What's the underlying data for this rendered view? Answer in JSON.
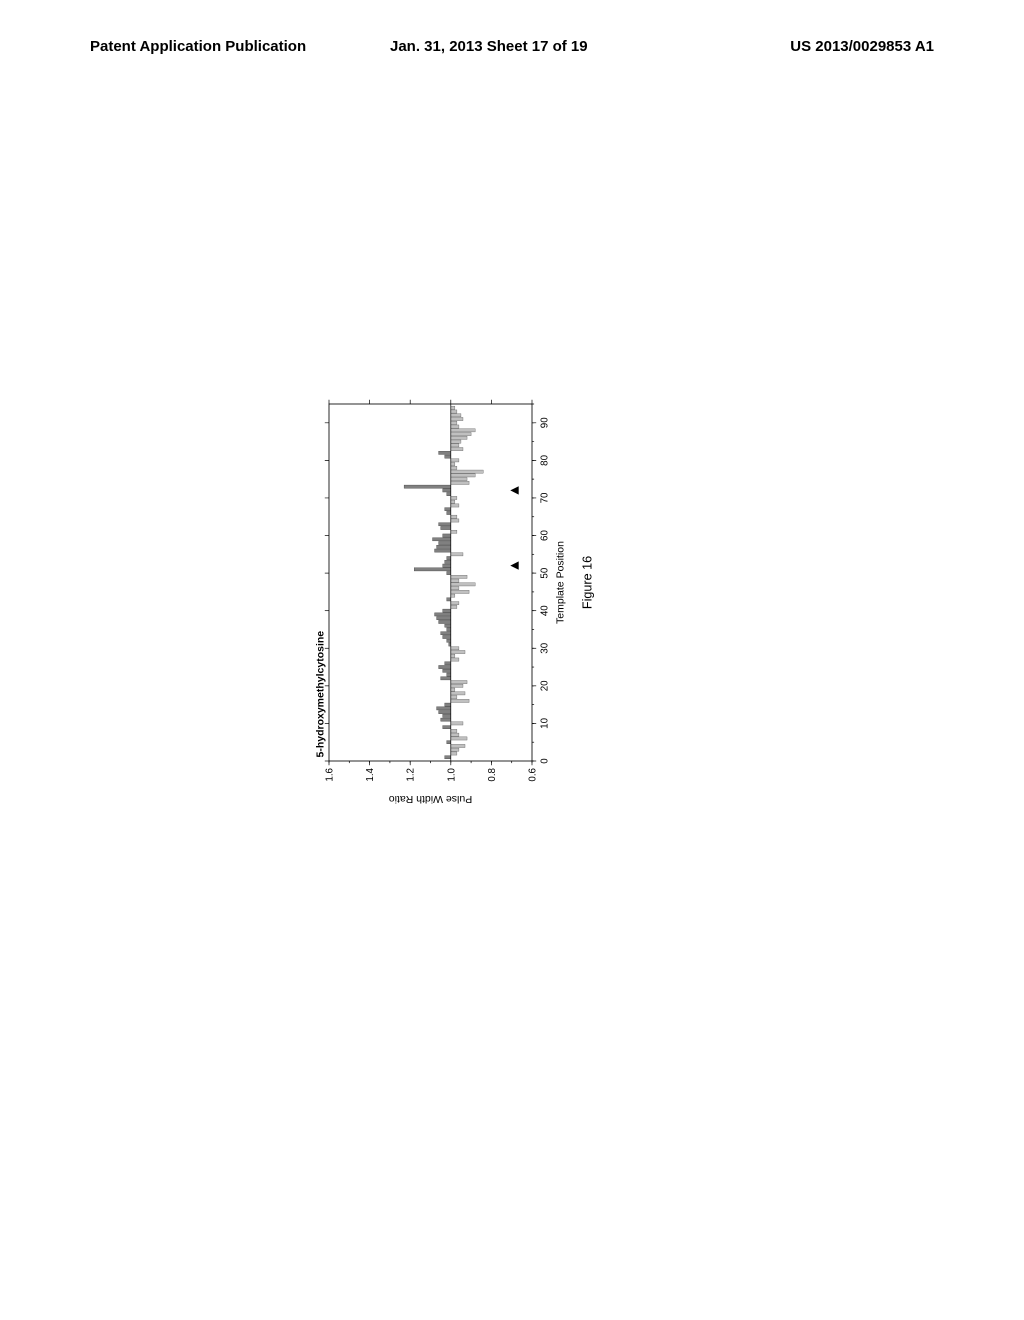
{
  "header": {
    "left": "Patent Application Publication",
    "center": "Jan. 31, 2013  Sheet 17 of 19",
    "right": "US 2013/0029853 A1"
  },
  "chart": {
    "type": "bar",
    "title": "5-hydroxymethylcytosine",
    "xlabel": "Template Position",
    "ylabel": "Pulse Width Ratio",
    "figure_caption": "Figure 16",
    "xlim": [
      0,
      95
    ],
    "ylim": [
      0.6,
      1.6
    ],
    "xticks": [
      0,
      10,
      20,
      30,
      40,
      50,
      60,
      70,
      80,
      90
    ],
    "yticks": [
      0.6,
      0.8,
      1.0,
      1.2,
      1.4,
      1.6
    ],
    "baseline": 1.0,
    "bar_color_pos": "#808080",
    "bar_color_neg": "#c0c0c0",
    "background_color": "#ffffff",
    "axis_color": "#000000",
    "marker_positions": [
      52,
      72
    ],
    "values": [
      {
        "x": 1,
        "y": 1.03
      },
      {
        "x": 2,
        "y": 0.97
      },
      {
        "x": 3,
        "y": 0.96
      },
      {
        "x": 4,
        "y": 0.93
      },
      {
        "x": 5,
        "y": 1.02
      },
      {
        "x": 6,
        "y": 0.92
      },
      {
        "x": 7,
        "y": 0.96
      },
      {
        "x": 8,
        "y": 0.97
      },
      {
        "x": 9,
        "y": 1.04
      },
      {
        "x": 10,
        "y": 0.94
      },
      {
        "x": 11,
        "y": 1.05
      },
      {
        "x": 12,
        "y": 1.04
      },
      {
        "x": 13,
        "y": 1.06
      },
      {
        "x": 14,
        "y": 1.07
      },
      {
        "x": 15,
        "y": 1.03
      },
      {
        "x": 16,
        "y": 0.91
      },
      {
        "x": 17,
        "y": 0.97
      },
      {
        "x": 18,
        "y": 0.93
      },
      {
        "x": 19,
        "y": 0.98
      },
      {
        "x": 20,
        "y": 0.94
      },
      {
        "x": 21,
        "y": 0.92
      },
      {
        "x": 22,
        "y": 1.05
      },
      {
        "x": 23,
        "y": 1.02
      },
      {
        "x": 24,
        "y": 1.04
      },
      {
        "x": 25,
        "y": 1.06
      },
      {
        "x": 26,
        "y": 1.03
      },
      {
        "x": 27,
        "y": 0.96
      },
      {
        "x": 28,
        "y": 0.98
      },
      {
        "x": 29,
        "y": 0.93
      },
      {
        "x": 30,
        "y": 0.96
      },
      {
        "x": 31,
        "y": 1.01
      },
      {
        "x": 32,
        "y": 1.02
      },
      {
        "x": 33,
        "y": 1.04
      },
      {
        "x": 34,
        "y": 1.05
      },
      {
        "x": 35,
        "y": 1.02
      },
      {
        "x": 36,
        "y": 1.03
      },
      {
        "x": 37,
        "y": 1.06
      },
      {
        "x": 38,
        "y": 1.07
      },
      {
        "x": 39,
        "y": 1.08
      },
      {
        "x": 40,
        "y": 1.04
      },
      {
        "x": 41,
        "y": 0.97
      },
      {
        "x": 42,
        "y": 0.96
      },
      {
        "x": 43,
        "y": 1.02
      },
      {
        "x": 44,
        "y": 0.98
      },
      {
        "x": 45,
        "y": 0.91
      },
      {
        "x": 46,
        "y": 0.96
      },
      {
        "x": 47,
        "y": 0.88
      },
      {
        "x": 48,
        "y": 0.96
      },
      {
        "x": 49,
        "y": 0.92
      },
      {
        "x": 50,
        "y": 1.02
      },
      {
        "x": 51,
        "y": 1.18
      },
      {
        "x": 52,
        "y": 1.04
      },
      {
        "x": 53,
        "y": 1.03
      },
      {
        "x": 54,
        "y": 1.02
      },
      {
        "x": 55,
        "y": 0.94
      },
      {
        "x": 56,
        "y": 1.08
      },
      {
        "x": 57,
        "y": 1.07
      },
      {
        "x": 58,
        "y": 1.06
      },
      {
        "x": 59,
        "y": 1.09
      },
      {
        "x": 60,
        "y": 1.04
      },
      {
        "x": 61,
        "y": 0.97
      },
      {
        "x": 62,
        "y": 1.05
      },
      {
        "x": 63,
        "y": 1.06
      },
      {
        "x": 64,
        "y": 0.96
      },
      {
        "x": 65,
        "y": 0.97
      },
      {
        "x": 66,
        "y": 1.02
      },
      {
        "x": 67,
        "y": 1.03
      },
      {
        "x": 68,
        "y": 0.96
      },
      {
        "x": 69,
        "y": 0.98
      },
      {
        "x": 70,
        "y": 0.97
      },
      {
        "x": 71,
        "y": 1.02
      },
      {
        "x": 72,
        "y": 1.04
      },
      {
        "x": 73,
        "y": 1.23
      },
      {
        "x": 74,
        "y": 0.91
      },
      {
        "x": 75,
        "y": 0.92
      },
      {
        "x": 76,
        "y": 0.88
      },
      {
        "x": 77,
        "y": 0.84
      },
      {
        "x": 78,
        "y": 0.97
      },
      {
        "x": 79,
        "y": 0.98
      },
      {
        "x": 80,
        "y": 0.96
      },
      {
        "x": 81,
        "y": 1.03
      },
      {
        "x": 82,
        "y": 1.06
      },
      {
        "x": 83,
        "y": 0.94
      },
      {
        "x": 84,
        "y": 0.96
      },
      {
        "x": 85,
        "y": 0.95
      },
      {
        "x": 86,
        "y": 0.92
      },
      {
        "x": 87,
        "y": 0.9
      },
      {
        "x": 88,
        "y": 0.88
      },
      {
        "x": 89,
        "y": 0.96
      },
      {
        "x": 90,
        "y": 0.97
      },
      {
        "x": 91,
        "y": 0.94
      },
      {
        "x": 92,
        "y": 0.95
      },
      {
        "x": 93,
        "y": 0.97
      },
      {
        "x": 94,
        "y": 0.98
      }
    ]
  }
}
